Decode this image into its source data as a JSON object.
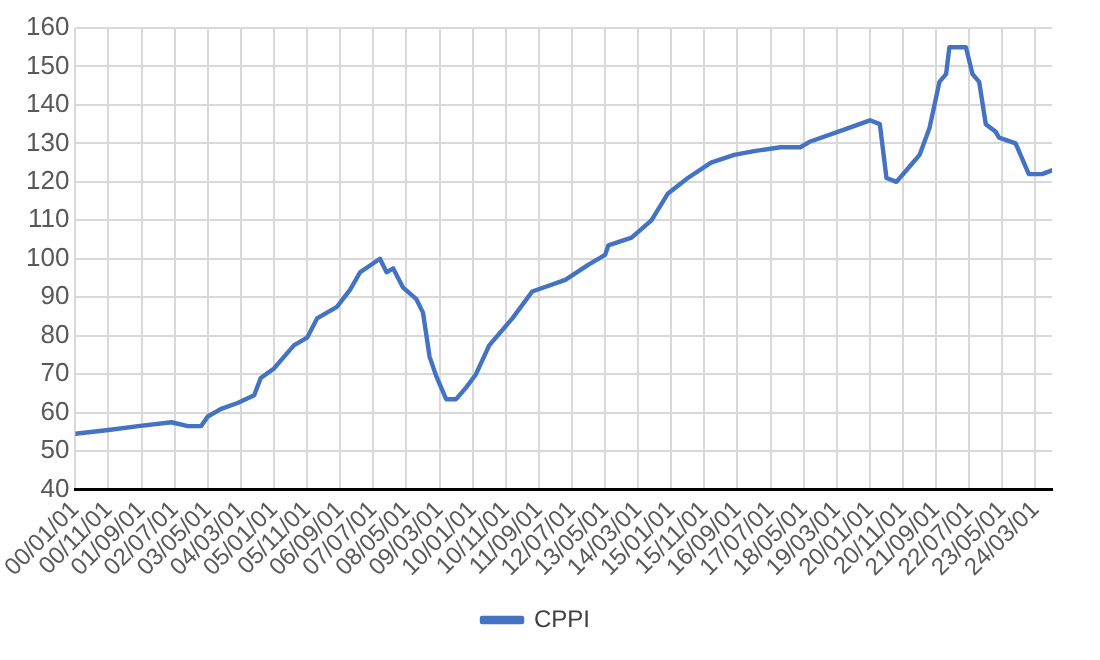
{
  "chart_data": {
    "type": "line",
    "x": [
      "2000-01",
      "2000-11",
      "2001-08",
      "2002-06",
      "2002-11",
      "2003-03",
      "2003-05",
      "2003-09",
      "2004-02",
      "2004-07",
      "2004-09",
      "2005-01",
      "2005-07",
      "2005-11",
      "2006-02",
      "2006-08",
      "2006-12",
      "2007-03",
      "2007-09",
      "2007-11",
      "2008-01",
      "2008-04",
      "2008-08",
      "2008-10",
      "2008-12",
      "2009-02",
      "2009-05",
      "2009-08",
      "2009-11",
      "2010-02",
      "2010-06",
      "2011-01",
      "2011-07",
      "2012-05",
      "2012-12",
      "2013-05",
      "2013-06",
      "2014-01",
      "2014-07",
      "2014-12",
      "2015-06",
      "2016-01",
      "2016-08",
      "2017-02",
      "2017-10",
      "2018-04",
      "2018-07",
      "2019-05",
      "2020-01",
      "2020-04",
      "2020-06",
      "2020-09",
      "2021-01",
      "2021-04",
      "2021-07",
      "2021-10",
      "2021-12",
      "2022-01",
      "2022-06",
      "2022-08",
      "2022-10",
      "2022-12",
      "2023-03",
      "2023-04",
      "2023-09",
      "2024-01",
      "2024-05",
      "2024-08"
    ],
    "series": [
      {
        "name": "CPPI",
        "color": "#4472c4",
        "values": [
          54.5,
          55.5,
          56.5,
          57.5,
          56.5,
          56.5,
          59,
          61,
          62.5,
          64.5,
          69,
          71.5,
          77.5,
          79.5,
          84.5,
          87.5,
          92,
          96.5,
          100,
          96.5,
          97.5,
          92.5,
          89.5,
          86,
          74.5,
          69.5,
          63.5,
          63.5,
          66.5,
          70,
          77.5,
          84.5,
          91.5,
          94.5,
          98.5,
          101,
          103.5,
          105.5,
          110,
          117,
          121,
          125,
          127,
          128,
          129,
          129,
          130.5,
          133.5,
          136,
          135,
          121,
          120,
          124,
          127,
          134,
          146,
          148,
          155,
          155,
          148,
          146,
          135,
          133,
          131.5,
          130,
          122,
          122,
          123
        ]
      }
    ],
    "xlim": [
      "2000-01",
      "2024-08"
    ],
    "xticks": [
      {
        "value": "2000-01-01",
        "label": "00/01/01"
      },
      {
        "value": "2000-11-01",
        "label": "00/11/01"
      },
      {
        "value": "2001-09-01",
        "label": "01/09/01"
      },
      {
        "value": "2002-07-01",
        "label": "02/07/01"
      },
      {
        "value": "2003-05-01",
        "label": "03/05/01"
      },
      {
        "value": "2004-03-01",
        "label": "04/03/01"
      },
      {
        "value": "2005-01-01",
        "label": "05/01/01"
      },
      {
        "value": "2005-11-01",
        "label": "05/11/01"
      },
      {
        "value": "2006-09-01",
        "label": "06/09/01"
      },
      {
        "value": "2007-07-01",
        "label": "07/07/01"
      },
      {
        "value": "2008-05-01",
        "label": "08/05/01"
      },
      {
        "value": "2009-03-01",
        "label": "09/03/01"
      },
      {
        "value": "2010-01-01",
        "label": "10/01/01"
      },
      {
        "value": "2010-11-01",
        "label": "10/11/01"
      },
      {
        "value": "2011-09-01",
        "label": "11/09/01"
      },
      {
        "value": "2012-07-01",
        "label": "12/07/01"
      },
      {
        "value": "2013-05-01",
        "label": "13/05/01"
      },
      {
        "value": "2014-03-01",
        "label": "14/03/01"
      },
      {
        "value": "2015-01-01",
        "label": "15/01/01"
      },
      {
        "value": "2015-11-01",
        "label": "15/11/01"
      },
      {
        "value": "2016-09-01",
        "label": "16/09/01"
      },
      {
        "value": "2017-07-01",
        "label": "17/07/01"
      },
      {
        "value": "2018-05-01",
        "label": "18/05/01"
      },
      {
        "value": "2019-03-01",
        "label": "19/03/01"
      },
      {
        "value": "2020-01-01",
        "label": "20/01/01"
      },
      {
        "value": "2020-11-01",
        "label": "20/11/01"
      },
      {
        "value": "2021-09-01",
        "label": "21/09/01"
      },
      {
        "value": "2022-07-01",
        "label": "22/07/01"
      },
      {
        "value": "2023-05-01",
        "label": "23/05/01"
      },
      {
        "value": "2024-03-01",
        "label": "24/03/01"
      }
    ],
    "ylim": [
      40,
      160
    ],
    "yticks": [
      40,
      50,
      60,
      70,
      80,
      90,
      100,
      110,
      120,
      130,
      140,
      150,
      160
    ],
    "grid": true,
    "legend": "bottom",
    "marker": "none",
    "line_style": "solid"
  }
}
